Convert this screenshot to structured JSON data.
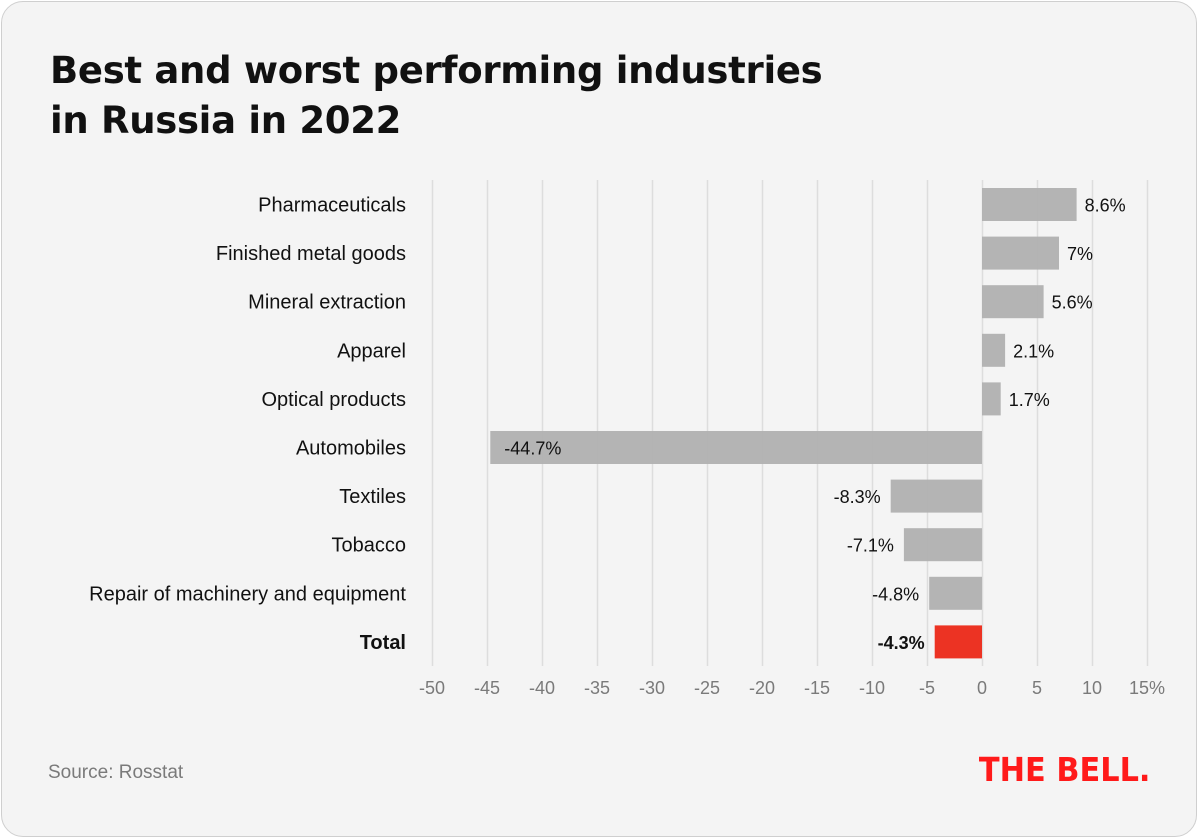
{
  "title_lines": [
    "Best and worst performing industries",
    "in Russia in 2022"
  ],
  "source": "Source: Rosstat",
  "logo": "THE BELL.",
  "colors": {
    "bar": "#b2b2b2",
    "total_bar": "#ec3323",
    "grid": "#dddddd",
    "logo": "#ff1a1a"
  },
  "chart_data": {
    "type": "bar",
    "orientation": "horizontal",
    "title": "Best and worst performing industries in Russia in 2022",
    "xlabel": "",
    "ylabel": "",
    "unit": "%",
    "categories": [
      "Pharmaceuticals",
      "Finished metal goods",
      "Mineral extraction",
      "Apparel",
      "Optical products",
      "Automobiles",
      "Textiles",
      "Tobacco",
      "Repair of machinery and equipment",
      "Total"
    ],
    "values": [
      8.6,
      7,
      5.6,
      2.1,
      1.7,
      -44.7,
      -8.3,
      -7.1,
      -4.8,
      -4.3
    ],
    "value_labels": [
      "8.6%",
      "7%",
      "5.6%",
      "2.1%",
      "1.7%",
      "-44.7%",
      "-8.3%",
      "-7.1%",
      "-4.8%",
      "-4.3%"
    ],
    "highlight": [
      "Total"
    ],
    "xlim": [
      -50,
      15
    ],
    "xticks": [
      -50,
      -45,
      -40,
      -35,
      -30,
      -25,
      -20,
      -15,
      -10,
      -5,
      0,
      5,
      10,
      15
    ],
    "xtick_labels": [
      "-50",
      "-45",
      "-40",
      "-35",
      "-30",
      "-25",
      "-20",
      "-15",
      "-10",
      "-5",
      "0",
      "5",
      "10",
      "15%"
    ],
    "grid": true,
    "legend": "none"
  }
}
